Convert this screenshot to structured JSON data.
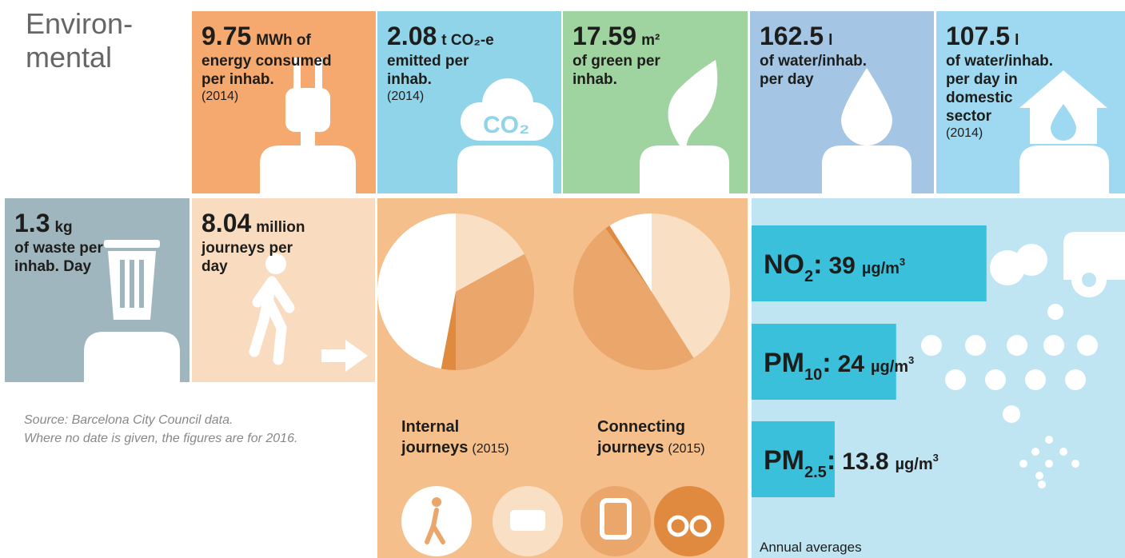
{
  "title_lines": [
    "Environ-",
    "mental"
  ],
  "tiles": [
    {
      "value": "9.75",
      "unit": "MWh of",
      "lines": [
        "energy consumed",
        "per inhab."
      ],
      "year": "(2014)",
      "color": "#f6a96f"
    },
    {
      "value": "2.08",
      "unit": "t CO₂-e",
      "lines": [
        "emitted per",
        "inhab."
      ],
      "year": "(2014)",
      "color": "#8fd4e9",
      "icon_text": "CO₂"
    },
    {
      "value": "17.59",
      "unit": "m²",
      "lines": [
        "of green per",
        "inhab."
      ],
      "color": "#9fd3a0"
    },
    {
      "value": "162.5",
      "unit": "l",
      "lines": [
        "of water/inhab.",
        "per day"
      ],
      "color": "#a4c5e4"
    },
    {
      "value": "107.5",
      "unit": "l",
      "lines": [
        "of water/inhab.",
        "per day in",
        "domestic",
        "sector"
      ],
      "year": "(2014)",
      "color": "#9ed9f1"
    },
    {
      "value": "1.3",
      "unit": "kg",
      "lines": [
        "of waste per",
        "inhab. Day"
      ],
      "color": "#9fb6be"
    },
    {
      "value": "8.04",
      "unit": "million",
      "lines": [
        "journeys per",
        "day"
      ],
      "color": "#f9dcc0"
    }
  ],
  "source_lines": [
    "Source: Barcelona City Council data.",
    "Where no date is given, the figures are for 2016."
  ],
  "journeys": {
    "background": "#f4bf8a",
    "pies": [
      {
        "lines": [
          "Internal",
          "journeys"
        ],
        "year": "(2015)"
      },
      {
        "lines": [
          "Connecting",
          "journeys"
        ],
        "year": "(2015)"
      }
    ],
    "modes": [
      {
        "color": "#f9dfc4",
        "values": [
          17,
          41
        ]
      },
      {
        "color": "#eaa66b",
        "values": [
          33,
          49
        ]
      },
      {
        "color": "#e08a3f",
        "values": [
          3,
          1
        ]
      },
      {
        "color": "#ffffff",
        "values": [
          47,
          9
        ]
      }
    ]
  },
  "air": {
    "background": "#c0e5f2",
    "color": "#3bc0dc",
    "xlim": [
      0,
      62
    ],
    "separator": ":",
    "bars": [
      {
        "name": "NO",
        "sub": "2",
        "value": 39,
        "unit": "µg/m",
        "sup": "3"
      },
      {
        "name": "PM",
        "sub": "10",
        "value": 24,
        "unit": "µg/m",
        "sup": "3"
      },
      {
        "name": "PM",
        "sub": "2.5",
        "value": 13.8,
        "unit": "µg/m",
        "sup": "3"
      }
    ],
    "note": "Annual averages"
  }
}
